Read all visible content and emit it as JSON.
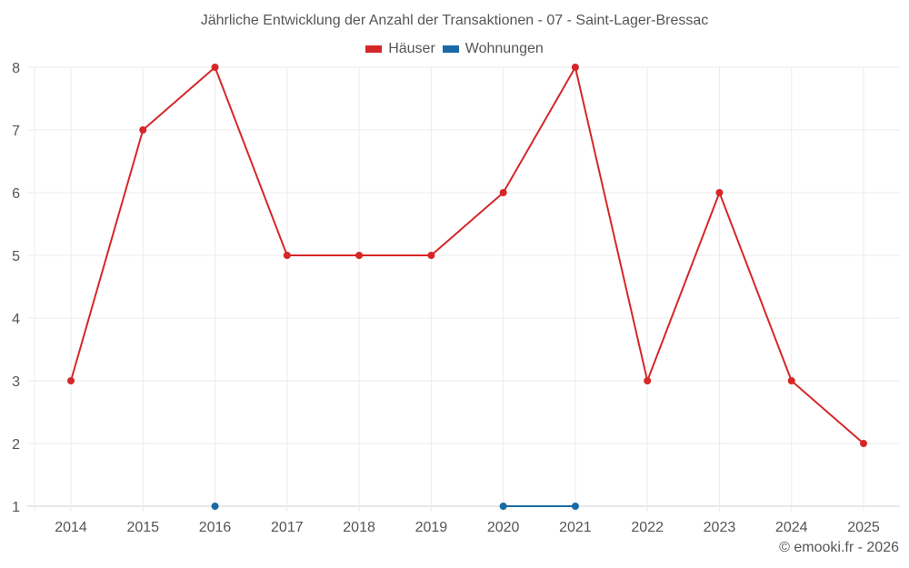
{
  "chart_data": {
    "type": "line",
    "title": "Jährliche Entwicklung der Anzahl der Transaktionen - 07 - Saint-Lager-Bressac",
    "xlabel": "",
    "ylabel": "",
    "categories": [
      "2014",
      "2015",
      "2016",
      "2017",
      "2018",
      "2019",
      "2020",
      "2021",
      "2022",
      "2023",
      "2024",
      "2025"
    ],
    "series": [
      {
        "name": "Häuser",
        "color": "#d62728",
        "values": [
          3,
          7,
          8,
          5,
          5,
          5,
          6,
          8,
          3,
          6,
          3,
          2
        ]
      },
      {
        "name": "Wohnungen",
        "color": "#1a6aa6",
        "values": [
          null,
          null,
          1,
          null,
          null,
          null,
          1,
          1,
          null,
          null,
          null,
          null
        ]
      }
    ],
    "ylim": [
      1,
      8
    ],
    "yticks": [
      1,
      2,
      3,
      4,
      5,
      6,
      7,
      8
    ],
    "grid": true,
    "legend_position": "top"
  },
  "title": "Jährliche Entwicklung der Anzahl der Transaktionen - 07 - Saint-Lager-Bressac",
  "legend": [
    {
      "label": "Häuser",
      "color": "#d62728"
    },
    {
      "label": "Wohnungen",
      "color": "#1a6aa6"
    }
  ],
  "credit": "© emooki.fr - 2026"
}
